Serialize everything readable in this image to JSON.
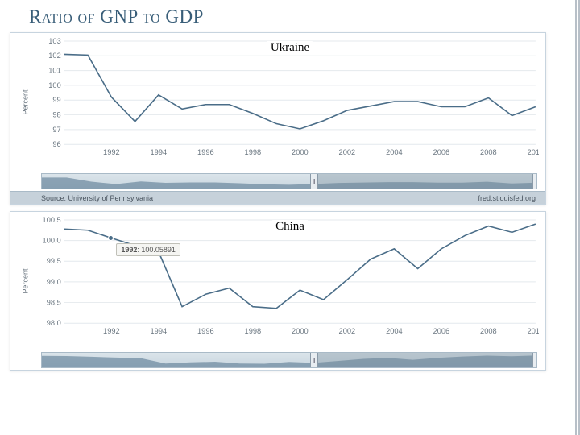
{
  "page_title": "Ratio of GNP to GDP",
  "charts": [
    {
      "country": "Ukraine",
      "y_axis_label": "Percent",
      "ylim": [
        96,
        103
      ],
      "ytick_step": 1,
      "xlim": [
        1990,
        2010
      ],
      "xtick_step": 2,
      "grid_color": "#e4e9ed",
      "line_color": "#4a6d88",
      "bg_color": "#ffffff",
      "label_fontsize": 9,
      "title_fontsize": 15,
      "x": [
        1990,
        1991,
        1992,
        1993,
        1994,
        1995,
        1996,
        1997,
        1998,
        1999,
        2000,
        2001,
        2002,
        2003,
        2004,
        2005,
        2006,
        2007,
        2008,
        2009,
        2010
      ],
      "y": [
        102.1,
        102.05,
        99.2,
        97.55,
        99.35,
        98.4,
        98.7,
        98.7,
        98.1,
        97.4,
        97.05,
        97.6,
        98.3,
        98.6,
        98.9,
        98.9,
        98.55,
        98.55,
        99.15,
        97.95,
        98.55
      ],
      "scrubber_selection": [
        0.55,
        1.0
      ],
      "source_left": "Source: University of Pennsylvania",
      "source_right": "fred.stlouisfed.org"
    },
    {
      "country": "China",
      "y_axis_label": "Percent",
      "ylim": [
        98.0,
        100.5
      ],
      "ytick_step": 0.5,
      "xlim": [
        1990,
        2010
      ],
      "xtick_step": 2,
      "grid_color": "#e4e9ed",
      "line_color": "#4a6d88",
      "bg_color": "#ffffff",
      "label_fontsize": 9,
      "title_fontsize": 15,
      "x": [
        1990,
        1991,
        1992,
        1993,
        1994,
        1995,
        1996,
        1997,
        1998,
        1999,
        2000,
        2001,
        2002,
        2003,
        2004,
        2005,
        2006,
        2007,
        2008,
        2009,
        2010
      ],
      "y": [
        100.28,
        100.25,
        100.06,
        99.88,
        99.73,
        98.4,
        98.7,
        98.85,
        98.4,
        98.36,
        98.8,
        98.57,
        99.05,
        99.55,
        99.8,
        99.32,
        99.8,
        100.12,
        100.35,
        100.2,
        100.4
      ],
      "tooltip": {
        "year": 1992,
        "value_text": "100.05891",
        "point_y": 100.06
      },
      "scrubber_selection": [
        0.55,
        1.0
      ]
    }
  ]
}
